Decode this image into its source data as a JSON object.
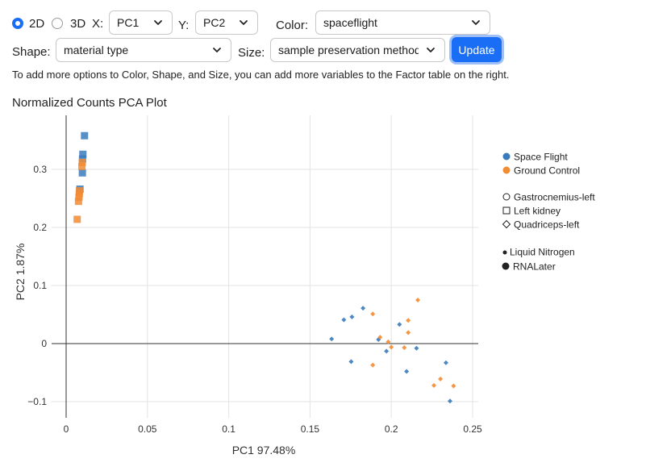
{
  "controls": {
    "dim_2d_label": "2D",
    "dim_3d_label": "3D",
    "dim_selected": "2D",
    "x_label": "X:",
    "x_value": "PC1",
    "y_label": "Y:",
    "y_value": "PC2",
    "color_label": "Color:",
    "color_value": "spaceflight",
    "shape_label": "Shape:",
    "shape_value": "material type",
    "size_label": "Size:",
    "size_value": "sample preservation method",
    "update_label": "Update"
  },
  "info_text": "To add more options to Color, Shape, and Size, you can add more variables to the Factor table on the right.",
  "plot_title": "Normalized Counts PCA Plot",
  "colors": {
    "space_flight": "#3a7bbd",
    "ground_control": "#f28b32",
    "accent": "#1a6ef5"
  },
  "legend": {
    "color": [
      {
        "label": "Space Flight",
        "color": "#3a7bbd"
      },
      {
        "label": "Ground Control",
        "color": "#f28b32"
      }
    ],
    "shape": [
      {
        "label": "Gastrocnemius-left",
        "icon": "circle-outline-icon"
      },
      {
        "label": "Left kidney",
        "icon": "square-outline-icon"
      },
      {
        "label": "Quadriceps-left",
        "icon": "diamond-outline-icon"
      }
    ],
    "size": [
      {
        "label": "Liquid Nitrogen",
        "icon": "small-dot-icon"
      },
      {
        "label": "RNALater",
        "icon": "large-dot-icon"
      }
    ]
  },
  "chart_data": {
    "type": "scatter",
    "title": "Normalized Counts PCA Plot",
    "xlabel": "PC1 97.48%",
    "ylabel": "PC2 1.87%",
    "xlim": [
      -0.005,
      0.252
    ],
    "ylim": [
      -0.11,
      0.392
    ],
    "x_ticks": [
      0,
      0.05,
      0.1,
      0.15,
      0.2,
      0.25
    ],
    "x_tick_labels": [
      "0",
      "0.05",
      "0.1",
      "0.15",
      "0.2",
      "0.25"
    ],
    "y_ticks": [
      -0.1,
      0,
      0.1,
      0.2,
      0.3
    ],
    "y_tick_labels": [
      "−0.1",
      "0",
      "0.1",
      "0.2",
      "0.3"
    ],
    "grid": true,
    "legend_position": "right",
    "series": [
      {
        "name": "Space Flight",
        "color": "#3a7bbd",
        "points": [
          {
            "x": 0.0113,
            "y": 0.358,
            "shape": "square",
            "size": "RNALater"
          },
          {
            "x": 0.0103,
            "y": 0.326,
            "shape": "square",
            "size": "RNALater"
          },
          {
            "x": 0.0101,
            "y": 0.318,
            "shape": "square",
            "size": "RNALater"
          },
          {
            "x": 0.01,
            "y": 0.294,
            "shape": "square",
            "size": "RNALater"
          },
          {
            "x": 0.0085,
            "y": 0.266,
            "shape": "square",
            "size": "RNALater"
          },
          {
            "x": 0.1633,
            "y": 0.008,
            "shape": "diamond",
            "size": "Liquid Nitrogen"
          },
          {
            "x": 0.1708,
            "y": 0.041,
            "shape": "diamond",
            "size": "Liquid Nitrogen"
          },
          {
            "x": 0.1758,
            "y": 0.046,
            "shape": "diamond",
            "size": "Liquid Nitrogen"
          },
          {
            "x": 0.1826,
            "y": 0.061,
            "shape": "diamond",
            "size": "Liquid Nitrogen"
          },
          {
            "x": 0.1753,
            "y": -0.031,
            "shape": "diamond",
            "size": "Liquid Nitrogen"
          },
          {
            "x": 0.1921,
            "y": 0.007,
            "shape": "diamond",
            "size": "Liquid Nitrogen"
          },
          {
            "x": 0.197,
            "y": -0.013,
            "shape": "diamond",
            "size": "Liquid Nitrogen"
          },
          {
            "x": 0.205,
            "y": 0.033,
            "shape": "diamond",
            "size": "Liquid Nitrogen"
          },
          {
            "x": 0.2094,
            "y": -0.048,
            "shape": "diamond",
            "size": "Liquid Nitrogen"
          },
          {
            "x": 0.2155,
            "y": -0.008,
            "shape": "diamond",
            "size": "Liquid Nitrogen"
          },
          {
            "x": 0.2336,
            "y": -0.033,
            "shape": "diamond",
            "size": "Liquid Nitrogen"
          },
          {
            "x": 0.2361,
            "y": -0.099,
            "shape": "diamond",
            "size": "Liquid Nitrogen"
          }
        ]
      },
      {
        "name": "Ground Control",
        "color": "#f28b32",
        "points": [
          {
            "x": 0.0099,
            "y": 0.312,
            "shape": "square",
            "size": "RNALater"
          },
          {
            "x": 0.0097,
            "y": 0.305,
            "shape": "square",
            "size": "RNALater"
          },
          {
            "x": 0.0082,
            "y": 0.263,
            "shape": "square",
            "size": "RNALater"
          },
          {
            "x": 0.0081,
            "y": 0.258,
            "shape": "square",
            "size": "RNALater"
          },
          {
            "x": 0.0079,
            "y": 0.252,
            "shape": "square",
            "size": "RNALater"
          },
          {
            "x": 0.0076,
            "y": 0.245,
            "shape": "square",
            "size": "RNALater"
          },
          {
            "x": 0.0068,
            "y": 0.214,
            "shape": "square",
            "size": "RNALater"
          },
          {
            "x": 0.1886,
            "y": 0.051,
            "shape": "diamond",
            "size": "Liquid Nitrogen"
          },
          {
            "x": 0.1931,
            "y": 0.011,
            "shape": "diamond",
            "size": "Liquid Nitrogen"
          },
          {
            "x": 0.1981,
            "y": 0.003,
            "shape": "diamond",
            "size": "Liquid Nitrogen"
          },
          {
            "x": 0.2,
            "y": -0.006,
            "shape": "diamond",
            "size": "Liquid Nitrogen"
          },
          {
            "x": 0.1886,
            "y": -0.037,
            "shape": "diamond",
            "size": "Liquid Nitrogen"
          },
          {
            "x": 0.208,
            "y": -0.007,
            "shape": "diamond",
            "size": "Liquid Nitrogen"
          },
          {
            "x": 0.2104,
            "y": 0.04,
            "shape": "diamond",
            "size": "Liquid Nitrogen"
          },
          {
            "x": 0.2104,
            "y": 0.019,
            "shape": "diamond",
            "size": "Liquid Nitrogen"
          },
          {
            "x": 0.2163,
            "y": 0.075,
            "shape": "diamond",
            "size": "Liquid Nitrogen"
          },
          {
            "x": 0.2262,
            "y": -0.072,
            "shape": "diamond",
            "size": "Liquid Nitrogen"
          },
          {
            "x": 0.2302,
            "y": -0.061,
            "shape": "diamond",
            "size": "Liquid Nitrogen"
          },
          {
            "x": 0.2383,
            "y": -0.073,
            "shape": "diamond",
            "size": "Liquid Nitrogen"
          }
        ]
      }
    ]
  }
}
